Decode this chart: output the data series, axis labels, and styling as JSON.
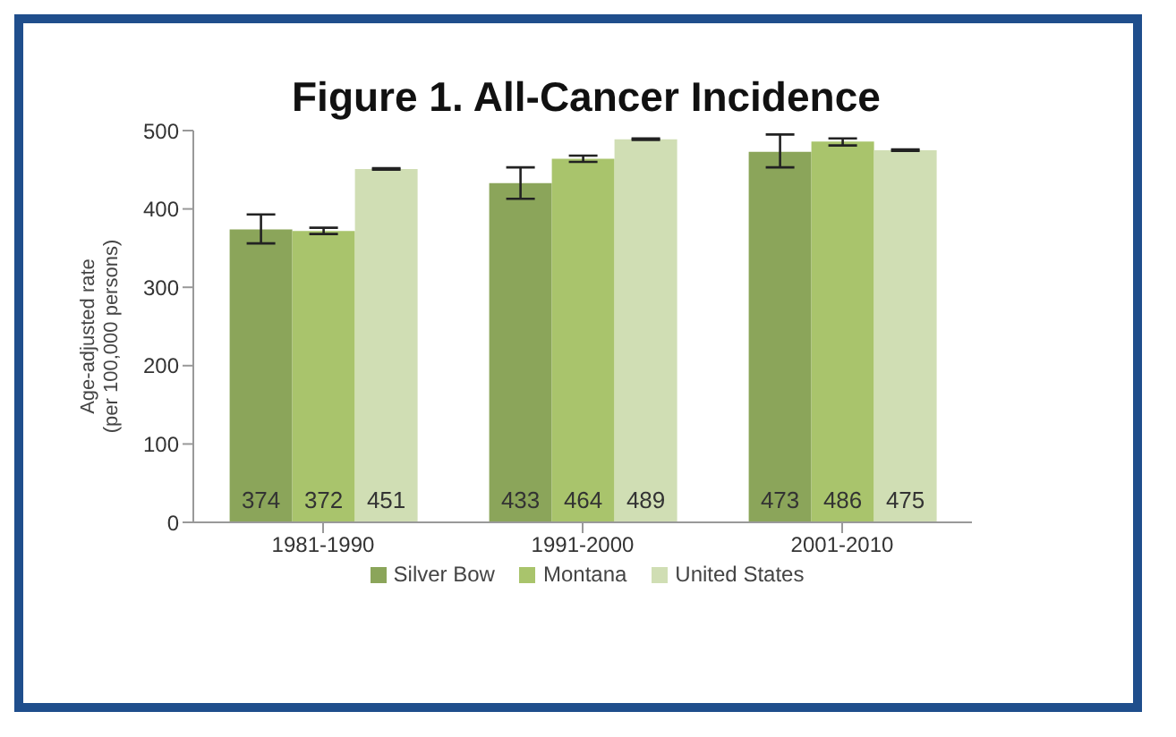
{
  "chart_data": {
    "type": "bar",
    "title": "Figure 1. All-Cancer Incidence",
    "ylabel": "Age-adjusted rate\n(per 100,000 persons)",
    "categories": [
      "1981-1990",
      "1991-2000",
      "2001-2010"
    ],
    "series": [
      {
        "name": "Silver Bow",
        "color": "#8ba55a",
        "values": [
          374,
          433,
          473
        ],
        "errors": [
          [
            356,
            393
          ],
          [
            413,
            453
          ],
          [
            453,
            495
          ]
        ]
      },
      {
        "name": "Montana",
        "color": "#a9c46c",
        "values": [
          372,
          464,
          486
        ],
        "errors": [
          [
            368,
            376
          ],
          [
            460,
            468
          ],
          [
            481,
            490
          ]
        ]
      },
      {
        "name": "United States",
        "color": "#d0deb4",
        "values": [
          451,
          489,
          475
        ],
        "errors": [
          [
            450,
            452
          ],
          [
            488,
            490
          ],
          [
            474,
            476
          ]
        ]
      }
    ],
    "ylim": [
      0,
      500
    ],
    "yticks": [
      0,
      100,
      200,
      300,
      400,
      500
    ],
    "data_labels": true,
    "legend": "bottom",
    "grid": false
  }
}
